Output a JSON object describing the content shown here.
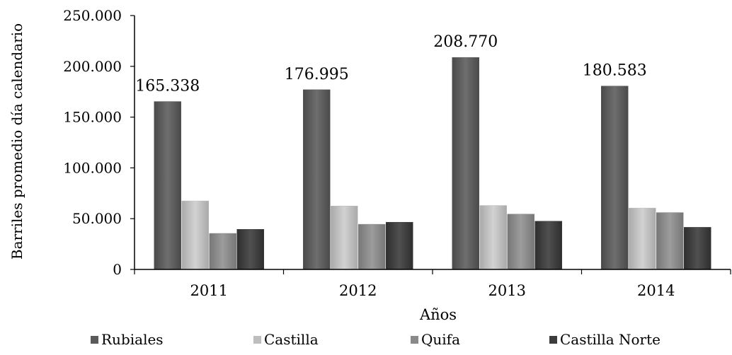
{
  "chart_data": {
    "type": "bar",
    "title": "",
    "xlabel": "Años",
    "ylabel": "Barriles promedio día calendario",
    "ylim": [
      0,
      250000
    ],
    "yticks": [
      0,
      50000,
      100000,
      150000,
      200000,
      250000
    ],
    "ytick_labels": [
      "0",
      "50.000",
      "100.000",
      "150.000",
      "200.000",
      "250.000"
    ],
    "categories": [
      "2011",
      "2012",
      "2013",
      "2014"
    ],
    "series": [
      {
        "name": "Rubiales",
        "values": [
          165338,
          176995,
          208770,
          180583
        ],
        "color": "#5a5a5a"
      },
      {
        "name": "Castilla",
        "values": [
          67500,
          62500,
          63000,
          60500
        ],
        "color": "#bdbdbd"
      },
      {
        "name": "Quifa",
        "values": [
          35500,
          44500,
          54500,
          56000
        ],
        "color": "#8a8a8a"
      },
      {
        "name": "Castilla Norte",
        "values": [
          39500,
          46500,
          47500,
          41500
        ],
        "color": "#3c3c3c"
      }
    ],
    "data_labels": [
      {
        "series": "Rubiales",
        "category": "2011",
        "text": "165.338"
      },
      {
        "series": "Rubiales",
        "category": "2012",
        "text": "176.995"
      },
      {
        "series": "Rubiales",
        "category": "2013",
        "text": "208.770"
      },
      {
        "series": "Rubiales",
        "category": "2014",
        "text": "180.583"
      }
    ],
    "grid": false,
    "legend_position": "bottom"
  }
}
